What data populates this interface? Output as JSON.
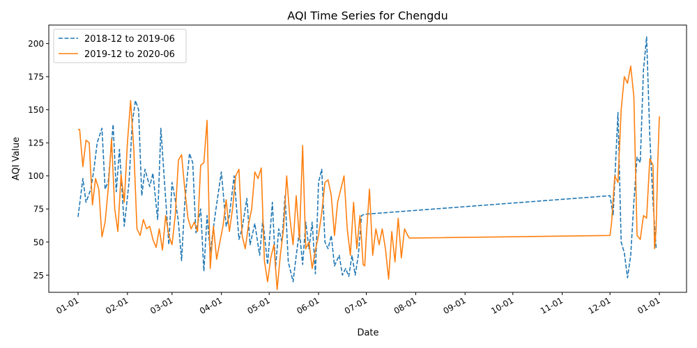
{
  "chart_data": {
    "type": "line",
    "title": "AQI Time Series for Chengdu",
    "xlabel": "Date",
    "ylabel": "AQI Value",
    "x_tick_labels": [
      "01-01",
      "02-01",
      "03-01",
      "04-01",
      "05-01",
      "06-01",
      "07-01",
      "08-01",
      "09-01",
      "10-01",
      "11-01",
      "12-01",
      "01-01"
    ],
    "y_ticks": [
      25,
      50,
      75,
      100,
      125,
      150,
      175,
      200
    ],
    "ylim": [
      12,
      214
    ],
    "grid": false,
    "legend_position": "top-left",
    "series": [
      {
        "name": "2018-12 to 2019-06",
        "style": "dashed",
        "color": "#1f77b4",
        "points": [
          [
            "01-01",
            69
          ],
          [
            "01-04",
            98
          ],
          [
            "01-06",
            80
          ],
          [
            "01-09",
            90
          ],
          [
            "01-11",
            105
          ],
          [
            "01-13",
            125
          ],
          [
            "01-16",
            136
          ],
          [
            "01-18",
            90
          ],
          [
            "01-20",
            96
          ],
          [
            "01-23",
            139
          ],
          [
            "01-25",
            88
          ],
          [
            "01-27",
            120
          ],
          [
            "01-30",
            62
          ],
          [
            "02-02",
            95
          ],
          [
            "02-04",
            140
          ],
          [
            "02-06",
            157
          ],
          [
            "02-08",
            150
          ],
          [
            "02-10",
            85
          ],
          [
            "02-12",
            105
          ],
          [
            "02-15",
            92
          ],
          [
            "02-17",
            102
          ],
          [
            "02-20",
            67
          ],
          [
            "02-22",
            136
          ],
          [
            "02-24",
            100
          ],
          [
            "02-27",
            48
          ],
          [
            "03-01",
            95
          ],
          [
            "03-03",
            82
          ],
          [
            "03-05",
            65
          ],
          [
            "03-07",
            36
          ],
          [
            "03-09",
            80
          ],
          [
            "03-12",
            117
          ],
          [
            "03-14",
            110
          ],
          [
            "03-16",
            57
          ],
          [
            "03-19",
            75
          ],
          [
            "03-21",
            28
          ],
          [
            "03-23",
            70
          ],
          [
            "03-25",
            42
          ],
          [
            "03-28",
            70
          ],
          [
            "04-01",
            103
          ],
          [
            "04-04",
            62
          ],
          [
            "04-06",
            70
          ],
          [
            "04-09",
            100
          ],
          [
            "04-12",
            52
          ],
          [
            "04-14",
            60
          ],
          [
            "04-17",
            83
          ],
          [
            "04-19",
            48
          ],
          [
            "04-22",
            64
          ],
          [
            "04-25",
            40
          ],
          [
            "04-27",
            67
          ],
          [
            "04-30",
            33
          ],
          [
            "05-03",
            80
          ],
          [
            "05-05",
            30
          ],
          [
            "05-07",
            60
          ],
          [
            "05-09",
            50
          ],
          [
            "05-11",
            85
          ],
          [
            "05-13",
            35
          ],
          [
            "05-16",
            20
          ],
          [
            "05-18",
            40
          ],
          [
            "05-20",
            58
          ],
          [
            "05-22",
            33
          ],
          [
            "05-24",
            65
          ],
          [
            "05-26",
            45
          ],
          [
            "05-28",
            65
          ],
          [
            "05-30",
            26
          ],
          [
            "06-01",
            95
          ],
          [
            "06-03",
            105
          ],
          [
            "06-05",
            50
          ],
          [
            "06-07",
            45
          ],
          [
            "06-09",
            55
          ],
          [
            "06-11",
            32
          ],
          [
            "06-14",
            40
          ],
          [
            "06-16",
            25
          ],
          [
            "06-18",
            30
          ],
          [
            "06-20",
            24
          ],
          [
            "06-22",
            40
          ],
          [
            "06-24",
            25
          ],
          [
            "06-26",
            40
          ],
          [
            "06-28",
            70
          ],
          [
            "06-30",
            71
          ],
          [
            "12-01",
            85
          ],
          [
            "12-03",
            70
          ],
          [
            "12-06",
            148
          ],
          [
            "12-08",
            50
          ],
          [
            "12-10",
            42
          ],
          [
            "12-12",
            23
          ],
          [
            "12-14",
            40
          ],
          [
            "12-16",
            80
          ],
          [
            "12-18",
            114
          ],
          [
            "12-20",
            110
          ],
          [
            "12-22",
            180
          ],
          [
            "12-24",
            205
          ],
          [
            "12-26",
            130
          ],
          [
            "12-28",
            80
          ],
          [
            "12-30",
            45
          ]
        ]
      },
      {
        "name": "2019-12 to 2020-06",
        "style": "solid",
        "color": "#ff7f0e",
        "points": [
          [
            "01-01",
            135
          ],
          [
            "01-02",
            135
          ],
          [
            "01-04",
            107
          ],
          [
            "01-06",
            127
          ],
          [
            "01-08",
            125
          ],
          [
            "01-10",
            78
          ],
          [
            "01-12",
            98
          ],
          [
            "01-14",
            90
          ],
          [
            "01-16",
            54
          ],
          [
            "01-18",
            65
          ],
          [
            "01-20",
            91
          ],
          [
            "01-22",
            128
          ],
          [
            "01-24",
            75
          ],
          [
            "01-26",
            58
          ],
          [
            "01-28",
            101
          ],
          [
            "01-30",
            80
          ],
          [
            "02-01",
            125
          ],
          [
            "02-03",
            157
          ],
          [
            "02-05",
            120
          ],
          [
            "02-07",
            60
          ],
          [
            "02-09",
            55
          ],
          [
            "02-11",
            67
          ],
          [
            "02-13",
            60
          ],
          [
            "02-15",
            62
          ],
          [
            "02-17",
            52
          ],
          [
            "02-19",
            46
          ],
          [
            "02-21",
            60
          ],
          [
            "02-23",
            44
          ],
          [
            "02-25",
            70
          ],
          [
            "02-27",
            55
          ],
          [
            "03-01",
            48
          ],
          [
            "03-03",
            70
          ],
          [
            "03-05",
            112
          ],
          [
            "03-07",
            116
          ],
          [
            "03-09",
            90
          ],
          [
            "03-11",
            68
          ],
          [
            "03-13",
            60
          ],
          [
            "03-15",
            65
          ],
          [
            "03-17",
            58
          ],
          [
            "03-19",
            108
          ],
          [
            "03-21",
            110
          ],
          [
            "03-23",
            142
          ],
          [
            "03-25",
            30
          ],
          [
            "03-27",
            62
          ],
          [
            "03-29",
            37
          ],
          [
            "03-31",
            50
          ],
          [
            "04-02",
            62
          ],
          [
            "04-04",
            82
          ],
          [
            "04-06",
            58
          ],
          [
            "04-08",
            75
          ],
          [
            "04-10",
            100
          ],
          [
            "04-12",
            105
          ],
          [
            "04-14",
            55
          ],
          [
            "04-16",
            45
          ],
          [
            "04-18",
            63
          ],
          [
            "04-20",
            75
          ],
          [
            "04-22",
            103
          ],
          [
            "04-24",
            98
          ],
          [
            "04-26",
            106
          ],
          [
            "04-28",
            36
          ],
          [
            "04-30",
            20
          ],
          [
            "05-02",
            38
          ],
          [
            "05-04",
            48
          ],
          [
            "05-06",
            14
          ],
          [
            "05-08",
            40
          ],
          [
            "05-10",
            60
          ],
          [
            "05-12",
            100
          ],
          [
            "05-14",
            68
          ],
          [
            "05-16",
            48
          ],
          [
            "05-18",
            85
          ],
          [
            "05-20",
            52
          ],
          [
            "05-22",
            123
          ],
          [
            "05-24",
            45
          ],
          [
            "05-26",
            50
          ],
          [
            "05-28",
            30
          ],
          [
            "05-30",
            44
          ],
          [
            "06-01",
            55
          ],
          [
            "06-03",
            72
          ],
          [
            "06-05",
            95
          ],
          [
            "06-07",
            97
          ],
          [
            "06-09",
            85
          ],
          [
            "06-11",
            55
          ],
          [
            "06-13",
            80
          ],
          [
            "06-15",
            90
          ],
          [
            "06-17",
            100
          ],
          [
            "06-19",
            60
          ],
          [
            "06-21",
            40
          ],
          [
            "06-23",
            80
          ],
          [
            "06-25",
            45
          ],
          [
            "06-27",
            70
          ],
          [
            "06-29",
            33
          ],
          [
            "06-30",
            32
          ],
          [
            "07-01",
            55
          ],
          [
            "07-03",
            90
          ],
          [
            "07-05",
            40
          ],
          [
            "07-07",
            60
          ],
          [
            "07-09",
            48
          ],
          [
            "07-11",
            60
          ],
          [
            "07-13",
            45
          ],
          [
            "07-15",
            22
          ],
          [
            "07-17",
            58
          ],
          [
            "07-19",
            35
          ],
          [
            "07-21",
            68
          ],
          [
            "07-23",
            38
          ],
          [
            "07-25",
            60
          ],
          [
            "07-27",
            55
          ],
          [
            "07-28",
            53
          ],
          [
            "12-01",
            55
          ],
          [
            "12-02",
            65
          ],
          [
            "12-04",
            100
          ],
          [
            "12-06",
            95
          ],
          [
            "12-08",
            150
          ],
          [
            "12-10",
            175
          ],
          [
            "12-12",
            170
          ],
          [
            "12-14",
            183
          ],
          [
            "12-16",
            160
          ],
          [
            "12-18",
            55
          ],
          [
            "12-20",
            52
          ],
          [
            "12-22",
            70
          ],
          [
            "12-24",
            68
          ],
          [
            "12-26",
            113
          ],
          [
            "12-28",
            108
          ],
          [
            "12-29",
            45
          ],
          [
            "12-30",
            60
          ],
          [
            "12-31",
            110
          ],
          [
            "01-01",
            145
          ]
        ]
      }
    ]
  }
}
